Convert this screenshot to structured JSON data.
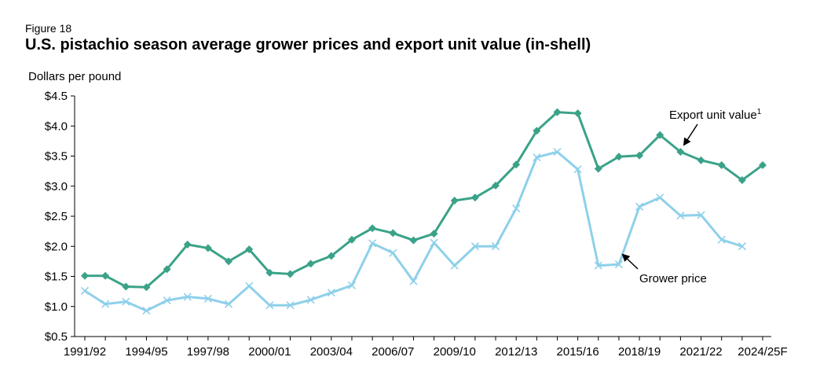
{
  "figure_label": "Figure 18",
  "title": "U.S. pistachio season average grower prices and export unit value (in-shell)",
  "chart_data": {
    "type": "line",
    "ylabel": "Dollars per pound",
    "xlabel": "",
    "ylim": [
      0.5,
      4.5
    ],
    "y_ticks": [
      "$0.5",
      "$1.0",
      "$1.5",
      "$2.0",
      "$2.5",
      "$3.0",
      "$3.5",
      "$4.0",
      "$4.5"
    ],
    "y_tick_values": [
      0.5,
      1.0,
      1.5,
      2.0,
      2.5,
      3.0,
      3.5,
      4.0,
      4.5
    ],
    "categories": [
      "1991/92",
      "1992/93",
      "1993/94",
      "1994/95",
      "1995/96",
      "1996/97",
      "1997/98",
      "1998/99",
      "1999/00",
      "2000/01",
      "2001/02",
      "2002/03",
      "2003/04",
      "2004/05",
      "2005/06",
      "2006/07",
      "2007/08",
      "2008/09",
      "2009/10",
      "2010/11",
      "2011/12",
      "2012/13",
      "2013/14",
      "2014/15",
      "2015/16",
      "2016/17",
      "2017/18",
      "2018/19",
      "2019/20",
      "2020/21",
      "2021/22",
      "2022/23",
      "2023/24",
      "2024/25F"
    ],
    "x_tick_labels": [
      "1991/92",
      "1994/95",
      "1997/98",
      "2000/01",
      "2003/04",
      "2006/07",
      "2009/10",
      "2012/13",
      "2015/16",
      "2018/19",
      "2021/22",
      "2024/25F"
    ],
    "series": [
      {
        "name": "Export unit value",
        "color": "#3aa288",
        "marker": "diamond",
        "values": [
          1.51,
          1.51,
          1.33,
          1.32,
          1.62,
          2.03,
          1.97,
          1.75,
          1.95,
          1.56,
          1.54,
          1.71,
          1.84,
          2.11,
          2.3,
          2.22,
          2.1,
          2.21,
          2.76,
          2.81,
          3.01,
          3.36,
          3.92,
          4.23,
          4.21,
          3.29,
          3.49,
          3.51,
          3.85,
          3.57,
          3.43,
          3.35,
          3.1,
          3.35
        ]
      },
      {
        "name": "Grower price",
        "color": "#8ed0ea",
        "marker": "x",
        "values": [
          1.26,
          1.04,
          1.08,
          0.93,
          1.1,
          1.16,
          1.13,
          1.04,
          1.34,
          1.02,
          1.02,
          1.11,
          1.23,
          1.35,
          2.05,
          1.89,
          1.42,
          2.06,
          1.68,
          2.0,
          2.0,
          2.63,
          3.48,
          3.57,
          3.28,
          1.68,
          1.7,
          2.66,
          2.81,
          2.51,
          2.52,
          2.11,
          2.0,
          null
        ]
      }
    ],
    "annotations": [
      {
        "text": "Export unit value",
        "superscript": "1",
        "series": "Export unit value"
      },
      {
        "text": "Grower price",
        "series": "Grower price"
      }
    ]
  }
}
